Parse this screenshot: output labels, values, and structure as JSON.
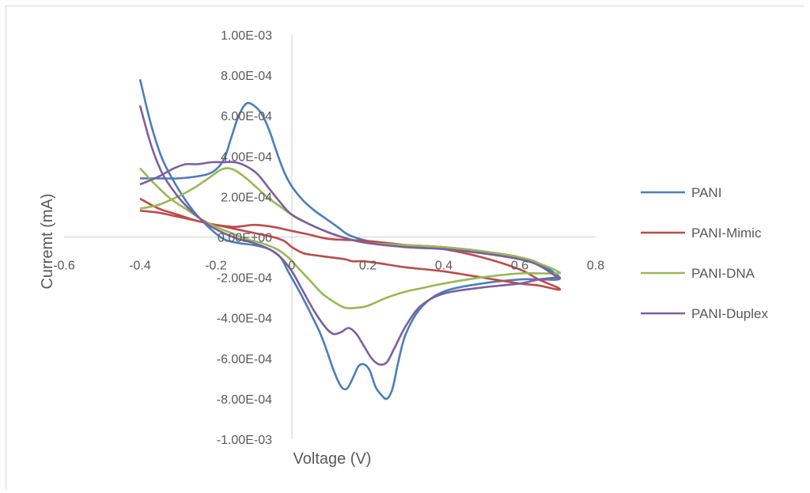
{
  "chart_data": {
    "type": "line",
    "title": "",
    "xlabel": "Voltage (V)",
    "ylabel": "Curremt (mA)",
    "xlim": [
      -0.6,
      0.8
    ],
    "ylim": [
      -0.001,
      0.001
    ],
    "x_ticks": [
      -0.6,
      -0.4,
      -0.2,
      0,
      0.2,
      0.4,
      0.6,
      0.8
    ],
    "x_tick_labels": [
      "-0.6",
      "-0.4",
      "-0.2",
      "0",
      "0.2",
      "0.4",
      "0.6",
      "0.8"
    ],
    "y_ticks": [
      0.001,
      0.0008,
      0.0006,
      0.0004,
      0.0002,
      0,
      -0.0002,
      -0.0004,
      -0.0006,
      -0.0008,
      -0.001
    ],
    "y_tick_labels": [
      "1.00E-03",
      "8.00E-04",
      "6.00E-04",
      "4.00E-04",
      "2.00E-04",
      "0.00E+00",
      "-2.00E-04",
      "-4.00E-04",
      "-6.00E-04",
      "-8.00E-04",
      "-1.00E-03"
    ],
    "grid": false,
    "legend": "right",
    "series": [
      {
        "name": "PANI",
        "color": "#4a7ebb",
        "points": [
          [
            -0.4,
            0.00078
          ],
          [
            -0.37,
            0.00055
          ],
          [
            -0.34,
            0.00038
          ],
          [
            -0.3,
            0.00024
          ],
          [
            -0.26,
            0.00013
          ],
          [
            -0.22,
            5e-05
          ],
          [
            -0.18,
            -1e-05
          ],
          [
            -0.14,
            -3e-05
          ],
          [
            -0.1,
            -4e-05
          ],
          [
            -0.06,
            -6e-05
          ],
          [
            -0.03,
            -0.0001
          ],
          [
            -0.01,
            -0.00017
          ],
          [
            0.02,
            -0.00027
          ],
          [
            0.05,
            -0.00038
          ],
          [
            0.08,
            -0.0005
          ],
          [
            0.11,
            -0.00066
          ],
          [
            0.13,
            -0.00074
          ],
          [
            0.145,
            -0.00075
          ],
          [
            0.16,
            -0.0007
          ],
          [
            0.175,
            -0.00064
          ],
          [
            0.19,
            -0.00063
          ],
          [
            0.205,
            -0.00066
          ],
          [
            0.22,
            -0.00074
          ],
          [
            0.235,
            -0.00078
          ],
          [
            0.25,
            -0.0008
          ],
          [
            0.265,
            -0.00075
          ],
          [
            0.28,
            -0.00062
          ],
          [
            0.3,
            -0.00048
          ],
          [
            0.34,
            -0.00035
          ],
          [
            0.4,
            -0.00027
          ],
          [
            0.5,
            -0.00023
          ],
          [
            0.6,
            -0.00021
          ],
          [
            0.65,
            -0.00021
          ],
          [
            0.7,
            -0.00021
          ],
          [
            0.7,
            -0.00019
          ],
          [
            0.65,
            -0.00013
          ],
          [
            0.6,
            -0.0001
          ],
          [
            0.5,
            -7e-05
          ],
          [
            0.4,
            -5e-05
          ],
          [
            0.3,
            -4e-05
          ],
          [
            0.25,
            -3.5e-05
          ],
          [
            0.2,
            -2e-05
          ],
          [
            0.15,
            1e-05
          ],
          [
            0.12,
            5e-05
          ],
          [
            0.09,
            9e-05
          ],
          [
            0.06,
            0.00013
          ],
          [
            0.03,
            0.00018
          ],
          [
            0.0,
            0.00025
          ],
          [
            -0.02,
            0.00032
          ],
          [
            -0.04,
            0.00042
          ],
          [
            -0.06,
            0.00053
          ],
          [
            -0.08,
            0.00061
          ],
          [
            -0.1,
            0.00065
          ],
          [
            -0.12,
            0.00066
          ],
          [
            -0.14,
            0.0006
          ],
          [
            -0.16,
            0.00049
          ],
          [
            -0.18,
            0.00038
          ],
          [
            -0.21,
            0.00032
          ],
          [
            -0.25,
            0.0003
          ],
          [
            -0.3,
            0.00029
          ],
          [
            -0.35,
            0.00029
          ],
          [
            -0.4,
            0.00029
          ]
        ]
      },
      {
        "name": "PANI-Mimic",
        "color": "#be4b48",
        "points": [
          [
            -0.4,
            0.00019
          ],
          [
            -0.35,
            0.00014
          ],
          [
            -0.3,
            0.00011
          ],
          [
            -0.25,
            8e-05
          ],
          [
            -0.2,
            6e-05
          ],
          [
            -0.15,
            4e-05
          ],
          [
            -0.1,
            2e-05
          ],
          [
            -0.05,
            0.0
          ],
          [
            -0.02,
            -2e-05
          ],
          [
            0.0,
            -5e-05
          ],
          [
            0.03,
            -8e-05
          ],
          [
            0.06,
            -9e-05
          ],
          [
            0.1,
            -0.0001
          ],
          [
            0.14,
            -0.00011
          ],
          [
            0.16,
            -0.00012
          ],
          [
            0.19,
            -0.00012
          ],
          [
            0.23,
            -0.00013
          ],
          [
            0.3,
            -0.00015
          ],
          [
            0.4,
            -0.00017
          ],
          [
            0.5,
            -0.0002
          ],
          [
            0.6,
            -0.00023
          ],
          [
            0.65,
            -0.00024
          ],
          [
            0.7,
            -0.00026
          ],
          [
            0.7,
            -0.00025
          ],
          [
            0.65,
            -0.00021
          ],
          [
            0.6,
            -0.00016
          ],
          [
            0.5,
            -0.0001
          ],
          [
            0.4,
            -6e-05
          ],
          [
            0.3,
            -4e-05
          ],
          [
            0.2,
            -2e-05
          ],
          [
            0.1,
            -1e-05
          ],
          [
            0.05,
            1e-05
          ],
          [
            0.0,
            3e-05
          ],
          [
            -0.05,
            5e-05
          ],
          [
            -0.1,
            6e-05
          ],
          [
            -0.15,
            5e-05
          ],
          [
            -0.2,
            6e-05
          ],
          [
            -0.25,
            8e-05
          ],
          [
            -0.3,
            0.0001
          ],
          [
            -0.35,
            0.00012
          ],
          [
            -0.4,
            0.00013
          ]
        ]
      },
      {
        "name": "PANI-DNA",
        "color": "#98b954",
        "points": [
          [
            -0.4,
            0.00034
          ],
          [
            -0.36,
            0.00026
          ],
          [
            -0.32,
            0.00019
          ],
          [
            -0.28,
            0.00014
          ],
          [
            -0.24,
            9e-05
          ],
          [
            -0.2,
            5e-05
          ],
          [
            -0.16,
            2e-05
          ],
          [
            -0.12,
            -1e-05
          ],
          [
            -0.08,
            -3e-05
          ],
          [
            -0.04,
            -6e-05
          ],
          [
            -0.01,
            -0.0001
          ],
          [
            0.02,
            -0.00016
          ],
          [
            0.05,
            -0.00022
          ],
          [
            0.08,
            -0.00028
          ],
          [
            0.11,
            -0.00032
          ],
          [
            0.14,
            -0.00035
          ],
          [
            0.17,
            -0.00035
          ],
          [
            0.2,
            -0.00034
          ],
          [
            0.25,
            -0.0003
          ],
          [
            0.3,
            -0.00027
          ],
          [
            0.35,
            -0.00025
          ],
          [
            0.4,
            -0.00023
          ],
          [
            0.5,
            -0.0002
          ],
          [
            0.6,
            -0.00018
          ],
          [
            0.65,
            -0.00018
          ],
          [
            0.7,
            -0.00018
          ],
          [
            0.7,
            -0.00017
          ],
          [
            0.65,
            -0.00013
          ],
          [
            0.6,
            -0.0001
          ],
          [
            0.5,
            -7e-05
          ],
          [
            0.4,
            -5e-05
          ],
          [
            0.3,
            -4e-05
          ],
          [
            0.2,
            -3e-05
          ],
          [
            0.15,
            -1e-05
          ],
          [
            0.1,
            2e-05
          ],
          [
            0.05,
            6e-05
          ],
          [
            0.0,
            0.00011
          ],
          [
            -0.03,
            0.00015
          ],
          [
            -0.06,
            0.00019
          ],
          [
            -0.09,
            0.00024
          ],
          [
            -0.12,
            0.00029
          ],
          [
            -0.15,
            0.00033
          ],
          [
            -0.17,
            0.00034
          ],
          [
            -0.19,
            0.00033
          ],
          [
            -0.22,
            0.00029
          ],
          [
            -0.26,
            0.00024
          ],
          [
            -0.3,
            0.0002
          ],
          [
            -0.35,
            0.00016
          ],
          [
            -0.4,
            0.00014
          ]
        ]
      },
      {
        "name": "PANI-Duplex",
        "color": "#7d5fa0",
        "points": [
          [
            -0.4,
            0.00065
          ],
          [
            -0.37,
            0.00045
          ],
          [
            -0.34,
            0.00031
          ],
          [
            -0.3,
            0.0002
          ],
          [
            -0.26,
            0.00012
          ],
          [
            -0.22,
            6e-05
          ],
          [
            -0.18,
            2e-05
          ],
          [
            -0.14,
            -1e-05
          ],
          [
            -0.1,
            -3e-05
          ],
          [
            -0.06,
            -6e-05
          ],
          [
            -0.03,
            -0.0001
          ],
          [
            0.0,
            -0.00017
          ],
          [
            0.03,
            -0.00027
          ],
          [
            0.06,
            -0.00037
          ],
          [
            0.09,
            -0.00045
          ],
          [
            0.11,
            -0.00048
          ],
          [
            0.13,
            -0.00047
          ],
          [
            0.15,
            -0.00045
          ],
          [
            0.17,
            -0.00048
          ],
          [
            0.19,
            -0.00054
          ],
          [
            0.21,
            -0.0006
          ],
          [
            0.23,
            -0.00063
          ],
          [
            0.25,
            -0.00062
          ],
          [
            0.27,
            -0.00055
          ],
          [
            0.3,
            -0.00044
          ],
          [
            0.34,
            -0.00034
          ],
          [
            0.4,
            -0.00028
          ],
          [
            0.5,
            -0.00025
          ],
          [
            0.6,
            -0.00023
          ],
          [
            0.65,
            -0.00021
          ],
          [
            0.7,
            -0.0002
          ],
          [
            0.7,
            -0.0002
          ],
          [
            0.65,
            -0.00014
          ],
          [
            0.6,
            -0.00011
          ],
          [
            0.5,
            -8e-05
          ],
          [
            0.4,
            -6e-05
          ],
          [
            0.3,
            -5e-05
          ],
          [
            0.2,
            -3e-05
          ],
          [
            0.15,
            -1e-05
          ],
          [
            0.1,
            2e-05
          ],
          [
            0.05,
            6e-05
          ],
          [
            0.0,
            0.00011
          ],
          [
            -0.03,
            0.00017
          ],
          [
            -0.06,
            0.00024
          ],
          [
            -0.09,
            0.00031
          ],
          [
            -0.12,
            0.00035
          ],
          [
            -0.15,
            0.00037
          ],
          [
            -0.18,
            0.00037
          ],
          [
            -0.21,
            0.00037
          ],
          [
            -0.25,
            0.00036
          ],
          [
            -0.28,
            0.00036
          ],
          [
            -0.31,
            0.00034
          ],
          [
            -0.35,
            0.0003
          ],
          [
            -0.4,
            0.00026
          ]
        ]
      }
    ]
  }
}
